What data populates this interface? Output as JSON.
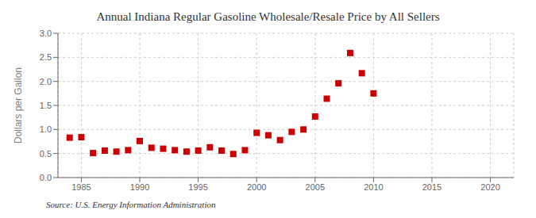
{
  "chart_data": {
    "type": "scatter",
    "title": "Annual Indiana Regular Gasoline Wholesale/Resale Price by All Sellers",
    "ylabel": "Dollars per Gallon",
    "annotation": "Source: U.S. Energy Information Administration",
    "x": [
      1984,
      1985,
      1986,
      1987,
      1988,
      1989,
      1990,
      1991,
      1992,
      1993,
      1994,
      1995,
      1996,
      1997,
      1998,
      1999,
      2000,
      2001,
      2002,
      2003,
      2004,
      2005,
      2006,
      2007,
      2008,
      2009,
      2010
    ],
    "values": [
      0.83,
      0.84,
      0.51,
      0.56,
      0.54,
      0.57,
      0.76,
      0.62,
      0.6,
      0.57,
      0.54,
      0.56,
      0.63,
      0.56,
      0.49,
      0.57,
      0.93,
      0.88,
      0.78,
      0.95,
      1.0,
      1.27,
      1.64,
      1.96,
      2.59,
      2.17,
      1.75
    ],
    "color": "#cc0000",
    "marker": "square",
    "xlim": [
      1983,
      2022
    ],
    "ylim": [
      0.0,
      3.0
    ],
    "xticks": [
      1985,
      1990,
      1995,
      2000,
      2005,
      2010,
      2015,
      2020
    ],
    "yticks": [
      {
        "value": 0,
        "label": "0.0"
      },
      0.5,
      {
        "value": 1,
        "label": "1.0"
      },
      1.5,
      {
        "value": 2,
        "label": "2.0"
      },
      2.5,
      {
        "value": 3,
        "label": "3.0"
      }
    ],
    "grid": true
  }
}
